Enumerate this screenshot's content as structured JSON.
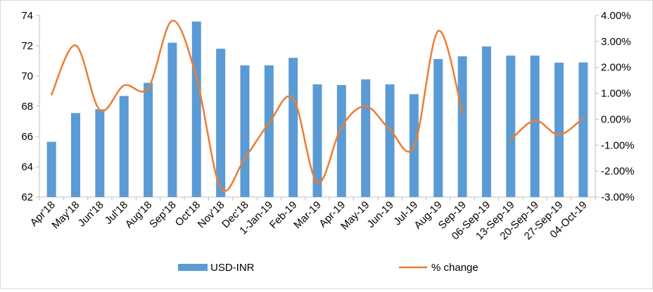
{
  "chart_data": {
    "type": "bar",
    "categories": [
      "Apr'18",
      "May'18",
      "Jun'18",
      "Jul'18",
      "Aug'18",
      "Sep'18",
      "Oct'18",
      "Nov'18",
      "Dec'18",
      "1-Jan-19",
      "Feb-19",
      "Mar-19",
      "Apr-19",
      "May-19",
      "Jun-19",
      "Jul-19",
      "Aug-19",
      "Sep-19",
      "06-Sep-19",
      "13-Sep-19",
      "20-Sep-19",
      "27-Sep-19",
      "04-Oct-19"
    ],
    "series": [
      {
        "name": "USD-INR",
        "type": "bar",
        "axis": "left",
        "color": "#5b9bd5",
        "values": [
          65.65,
          67.55,
          67.8,
          68.68,
          69.55,
          72.2,
          73.6,
          71.8,
          70.7,
          70.7,
          71.2,
          69.45,
          69.4,
          69.78,
          69.45,
          68.8,
          71.12,
          71.3,
          71.95,
          71.35,
          71.35,
          70.88,
          70.9
        ]
      },
      {
        "name": "% change",
        "type": "line",
        "axis": "right",
        "color": "#ed7d31",
        "values": [
          0.95,
          2.85,
          0.35,
          1.3,
          1.2,
          3.8,
          1.6,
          -2.65,
          -1.5,
          -0.15,
          0.8,
          -2.45,
          -0.3,
          0.5,
          -0.4,
          -1.05,
          3.4,
          0.25,
          null,
          -0.8,
          -0.05,
          -0.6,
          0.05
        ]
      }
    ],
    "y_left": {
      "min": 62,
      "max": 74,
      "ticks": [
        "62",
        "64",
        "66",
        "68",
        "70",
        "72",
        "74"
      ]
    },
    "y_right": {
      "min": -3,
      "max": 4,
      "ticks": [
        "-3.00%",
        "-2.00%",
        "-1.00%",
        "0.00%",
        "1.00%",
        "2.00%",
        "3.00%",
        "4.00%"
      ]
    },
    "grid": false,
    "legend_position": "bottom"
  },
  "legend": {
    "bar_label": "USD-INR",
    "line_label": "% change"
  },
  "colors": {
    "bar": "#5b9bd5",
    "line": "#ed7d31",
    "axis": "#bfbfbf"
  }
}
